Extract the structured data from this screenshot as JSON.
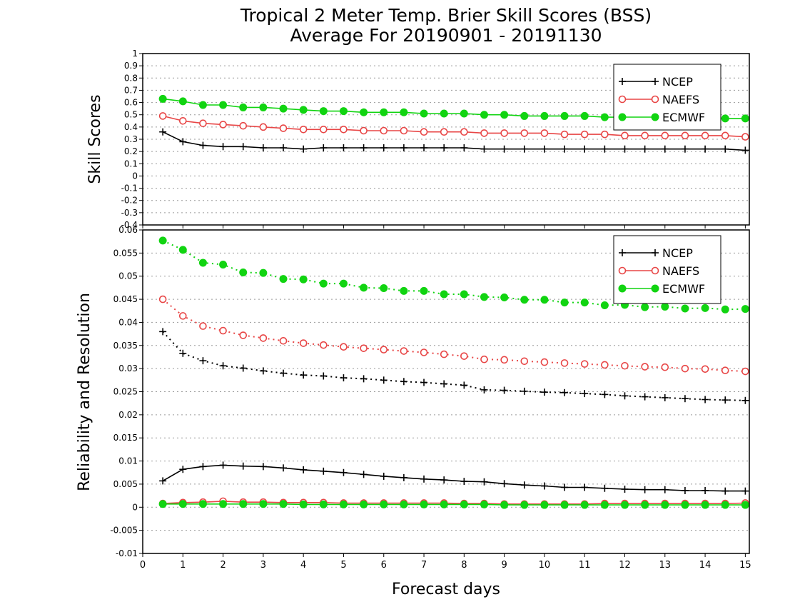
{
  "title_line1": "Tropical 2 Meter Temp. Brier Skill Scores (BSS)",
  "title_line2": "Average For 20190901 - 20191130",
  "xlabel": "Forecast days",
  "legend_labels": [
    "NCEP",
    "NAEFS",
    "ECMWF"
  ],
  "colors": {
    "NCEP": "#000000",
    "NAEFS": "#e84646",
    "ECMWF": "#11d411"
  },
  "chart_data": [
    {
      "type": "line",
      "ylabel": "Skill Scores",
      "xlim": [
        0,
        15.1
      ],
      "ylim": [
        -0.4,
        1
      ],
      "x_ticks": [
        0,
        1,
        2,
        3,
        4,
        5,
        6,
        7,
        8,
        9,
        10,
        11,
        12,
        13,
        14,
        15
      ],
      "y_ticks": [
        1,
        0.9,
        0.8,
        0.7,
        0.6,
        0.5,
        0.4,
        0.3,
        0.2,
        0.1,
        0,
        -0.1,
        -0.2,
        -0.3,
        -0.4
      ],
      "grid": true,
      "legend_position": "top-right",
      "x": [
        0.5,
        1,
        1.5,
        2,
        2.5,
        3,
        3.5,
        4,
        4.5,
        5,
        5.5,
        6,
        6.5,
        7,
        7.5,
        8,
        8.5,
        9,
        9.5,
        10,
        10.5,
        11,
        11.5,
        12,
        12.5,
        13,
        13.5,
        14,
        14.5,
        15
      ],
      "series": [
        {
          "name": "NCEP",
          "marker": "plus",
          "values": [
            0.36,
            0.28,
            0.25,
            0.24,
            0.24,
            0.23,
            0.23,
            0.22,
            0.23,
            0.23,
            0.23,
            0.23,
            0.23,
            0.23,
            0.23,
            0.23,
            0.22,
            0.22,
            0.22,
            0.22,
            0.22,
            0.22,
            0.22,
            0.22,
            0.22,
            0.22,
            0.22,
            0.22,
            0.22,
            0.21
          ]
        },
        {
          "name": "NAEFS",
          "marker": "open-circle",
          "values": [
            0.49,
            0.45,
            0.43,
            0.42,
            0.41,
            0.4,
            0.39,
            0.38,
            0.38,
            0.38,
            0.37,
            0.37,
            0.37,
            0.36,
            0.36,
            0.36,
            0.35,
            0.35,
            0.35,
            0.35,
            0.34,
            0.34,
            0.34,
            0.33,
            0.33,
            0.33,
            0.33,
            0.33,
            0.33,
            0.32
          ]
        },
        {
          "name": "ECMWF",
          "marker": "filled-circle",
          "values": [
            0.63,
            0.61,
            0.58,
            0.58,
            0.56,
            0.56,
            0.55,
            0.54,
            0.53,
            0.53,
            0.52,
            0.52,
            0.52,
            0.51,
            0.51,
            0.51,
            0.5,
            0.5,
            0.49,
            0.49,
            0.49,
            0.49,
            0.48,
            0.48,
            0.48,
            0.48,
            0.48,
            0.48,
            0.47,
            0.47
          ]
        }
      ]
    },
    {
      "type": "line",
      "ylabel": "Reliability and Resolution",
      "xlabel": "Forecast days",
      "xlim": [
        0,
        15.1
      ],
      "ylim": [
        -0.01,
        0.06
      ],
      "x_ticks": [
        0,
        1,
        2,
        3,
        4,
        5,
        6,
        7,
        8,
        9,
        10,
        11,
        12,
        13,
        14,
        15
      ],
      "y_ticks": [
        0.06,
        0.055,
        0.05,
        0.045,
        0.04,
        0.035,
        0.03,
        0.025,
        0.02,
        0.015,
        0.01,
        0.005,
        0,
        -0.005,
        -0.01
      ],
      "grid": true,
      "legend_position": "top-right",
      "x": [
        0.5,
        1,
        1.5,
        2,
        2.5,
        3,
        3.5,
        4,
        4.5,
        5,
        5.5,
        6,
        6.5,
        7,
        7.5,
        8,
        8.5,
        9,
        9.5,
        10,
        10.5,
        11,
        11.5,
        12,
        12.5,
        13,
        13.5,
        14,
        14.5,
        15
      ],
      "series": [
        {
          "name": "NCEP",
          "role": "resolution",
          "line": "dotted",
          "marker": "plus",
          "values": [
            0.038,
            0.0333,
            0.0317,
            0.0306,
            0.0301,
            0.0295,
            0.029,
            0.0286,
            0.0284,
            0.028,
            0.0278,
            0.0275,
            0.0272,
            0.027,
            0.0267,
            0.0264,
            0.0254,
            0.0253,
            0.0251,
            0.0249,
            0.0248,
            0.0246,
            0.0244,
            0.0241,
            0.0239,
            0.0237,
            0.0235,
            0.0233,
            0.0232,
            0.0231
          ]
        },
        {
          "name": "NAEFS",
          "role": "resolution",
          "line": "dotted",
          "marker": "open-circle",
          "values": [
            0.045,
            0.0414,
            0.0392,
            0.0382,
            0.0372,
            0.0366,
            0.036,
            0.0355,
            0.0351,
            0.0347,
            0.0344,
            0.0341,
            0.0338,
            0.0335,
            0.0331,
            0.0327,
            0.032,
            0.0319,
            0.0316,
            0.0314,
            0.0312,
            0.031,
            0.0308,
            0.0306,
            0.0304,
            0.0303,
            0.03,
            0.0299,
            0.0296,
            0.0294
          ]
        },
        {
          "name": "ECMWF",
          "role": "resolution",
          "line": "dotted",
          "marker": "filled-circle",
          "values": [
            0.0577,
            0.0557,
            0.0529,
            0.0525,
            0.0508,
            0.0507,
            0.0494,
            0.0493,
            0.0484,
            0.0484,
            0.0475,
            0.0474,
            0.0468,
            0.0468,
            0.0461,
            0.0461,
            0.0455,
            0.0454,
            0.0449,
            0.0449,
            0.0443,
            0.0443,
            0.0437,
            0.0438,
            0.0433,
            0.0434,
            0.043,
            0.0431,
            0.0428,
            0.0429
          ]
        },
        {
          "name": "NCEP",
          "role": "reliability",
          "line": "solid",
          "marker": "plus",
          "values": [
            0.0057,
            0.0082,
            0.0088,
            0.0091,
            0.0089,
            0.0088,
            0.0085,
            0.0081,
            0.0078,
            0.0075,
            0.0071,
            0.0067,
            0.0064,
            0.0061,
            0.0059,
            0.0056,
            0.0055,
            0.0051,
            0.0048,
            0.0046,
            0.0043,
            0.0043,
            0.0041,
            0.0039,
            0.0038,
            0.0038,
            0.0036,
            0.0036,
            0.0035,
            0.0035
          ]
        },
        {
          "name": "NAEFS",
          "role": "reliability",
          "line": "solid",
          "marker": "open-circle",
          "values": [
            0.0008,
            0.001,
            0.0011,
            0.0013,
            0.0011,
            0.0011,
            0.001,
            0.001,
            0.001,
            0.0009,
            0.0009,
            0.0009,
            0.0009,
            0.0009,
            0.0009,
            0.0008,
            0.0008,
            0.0007,
            0.0007,
            0.0007,
            0.0007,
            0.0007,
            0.0008,
            0.0008,
            0.0008,
            0.0008,
            0.0008,
            0.0008,
            0.0008,
            0.0009
          ]
        },
        {
          "name": "ECMWF",
          "role": "reliability",
          "line": "solid",
          "marker": "filled-circle",
          "values": [
            0.0007,
            0.0007,
            0.0007,
            0.0007,
            0.0007,
            0.0007,
            0.0007,
            0.0006,
            0.0006,
            0.0006,
            0.0006,
            0.0006,
            0.0006,
            0.0006,
            0.0006,
            0.0006,
            0.0006,
            0.0005,
            0.0005,
            0.0005,
            0.0005,
            0.0005,
            0.0005,
            0.0005,
            0.0005,
            0.0005,
            0.0005,
            0.0005,
            0.0005,
            0.0005
          ]
        }
      ]
    }
  ]
}
